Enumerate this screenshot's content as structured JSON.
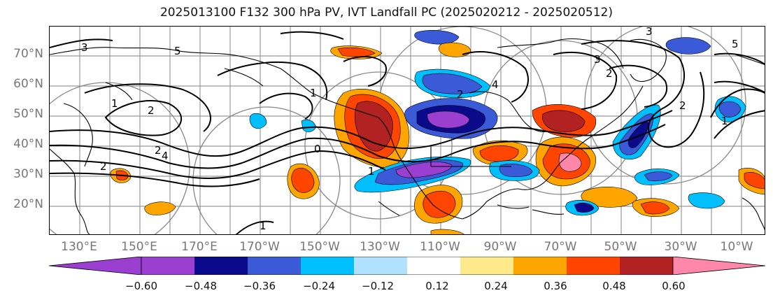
{
  "title": "2025013100 F132 300 hPa PV, IVT Landfall PC (2025020212 - 2025020512)",
  "map": {
    "lat_labels": [
      "70°N",
      "60°N",
      "50°N",
      "40°N",
      "30°N",
      "20°N"
    ],
    "lon_labels": [
      "130°E",
      "150°E",
      "170°E",
      "170°W",
      "150°W",
      "130°W",
      "110°W",
      "90°W",
      "70°W",
      "50°W",
      "30°W",
      "10°W"
    ],
    "contour_labels": [
      "3",
      "2",
      "1",
      "2",
      "1",
      "0",
      "1",
      "4",
      "3",
      "2",
      "5",
      "3",
      "2",
      "1",
      "2",
      "2",
      "1",
      "5",
      "4"
    ]
  },
  "colorbar": {
    "ticks": [
      "−0.60",
      "−0.48",
      "−0.36",
      "−0.24",
      "−0.12",
      "0.12",
      "0.24",
      "0.36",
      "0.48",
      "0.60"
    ],
    "colors": {
      "below": "#9a3fd0",
      "bins": [
        "#9a3fd0",
        "#0a0a8a",
        "#3a5ad8",
        "#00bfff",
        "#b0e2ff",
        "#ffffff",
        "#ffe98a",
        "#ffa500",
        "#ff4500",
        "#b22222"
      ],
      "above": "#ff88aa"
    }
  }
}
